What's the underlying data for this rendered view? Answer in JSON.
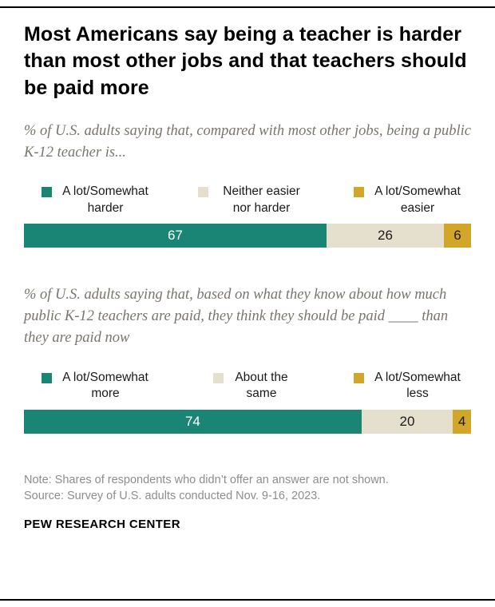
{
  "header": {
    "title": "Most Americans say being a teacher is harder than most other jobs and that teachers should be paid more"
  },
  "chart_data": [
    {
      "type": "bar",
      "subtype": "horizontal-stacked",
      "title": "% of U.S. adults saying that, compared with most other jobs, being a public K-12 teacher is...",
      "categories": [
        "A lot/Somewhat harder",
        "Neither easier nor harder",
        "A lot/Somewhat easier"
      ],
      "values": [
        67,
        26,
        6
      ],
      "colors": [
        "#1B8575",
        "#E5DFCE",
        "#D2A629"
      ],
      "legend_position": "top",
      "xlim": [
        0,
        100
      ],
      "grid": false
    },
    {
      "type": "bar",
      "subtype": "horizontal-stacked",
      "title": "% of U.S. adults saying that, based on what they know about how much public K-12 teachers are paid, they think they should be paid ____ than they are paid now",
      "categories": [
        "A lot/Somewhat more",
        "About the same",
        "A lot/Somewhat less"
      ],
      "values": [
        74,
        20,
        4
      ],
      "colors": [
        "#1B8575",
        "#E5DFCE",
        "#D2A629"
      ],
      "legend_position": "top",
      "xlim": [
        0,
        100
      ],
      "grid": false
    }
  ],
  "footer": {
    "note": "Note: Shares of respondents who didn’t offer an answer are not shown.",
    "source": "Source: Survey of U.S. adults conducted Nov. 9-16, 2023.",
    "brand": "PEW RESEARCH CENTER"
  },
  "colors": {
    "teal": "#1B8575",
    "beige": "#E5DFCE",
    "gold": "#D2A629",
    "subtitle_gray": "#7a756c",
    "note_gray": "#8d8d8d"
  }
}
